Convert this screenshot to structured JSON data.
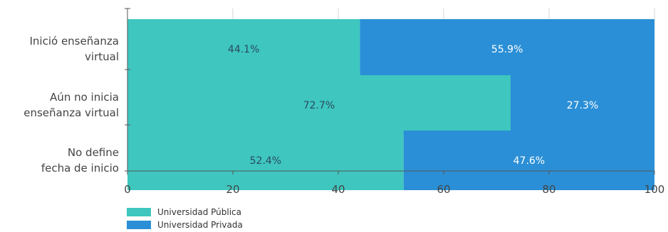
{
  "chart_data": {
    "type": "bar",
    "orientation": "horizontal",
    "stacked": true,
    "categories": [
      [
        "Inició enseñanza",
        "virtual"
      ],
      [
        "Aún no inicia",
        "enseñanza virtual"
      ],
      [
        "No define",
        "fecha de inicio"
      ]
    ],
    "series": [
      {
        "name": "Universidad Pública",
        "color": "#3ec6bf",
        "label_color": "#2b4b5c",
        "values": [
          44.1,
          72.7,
          52.4
        ],
        "labels": [
          "44.1%",
          "72.7%",
          "52.4%"
        ]
      },
      {
        "name": "Universidad Privada",
        "color": "#2a8fd6",
        "label_color": "#ffffff",
        "values": [
          55.9,
          27.3,
          47.6
        ],
        "labels": [
          "55.9%",
          "27.3%",
          "47.6%"
        ]
      }
    ],
    "xlim": [
      0,
      100
    ],
    "xticks": [
      0,
      20,
      40,
      60,
      80,
      100
    ],
    "grid": true,
    "legend_position": "bottom-left",
    "title": "",
    "xlabel": "",
    "ylabel": ""
  }
}
